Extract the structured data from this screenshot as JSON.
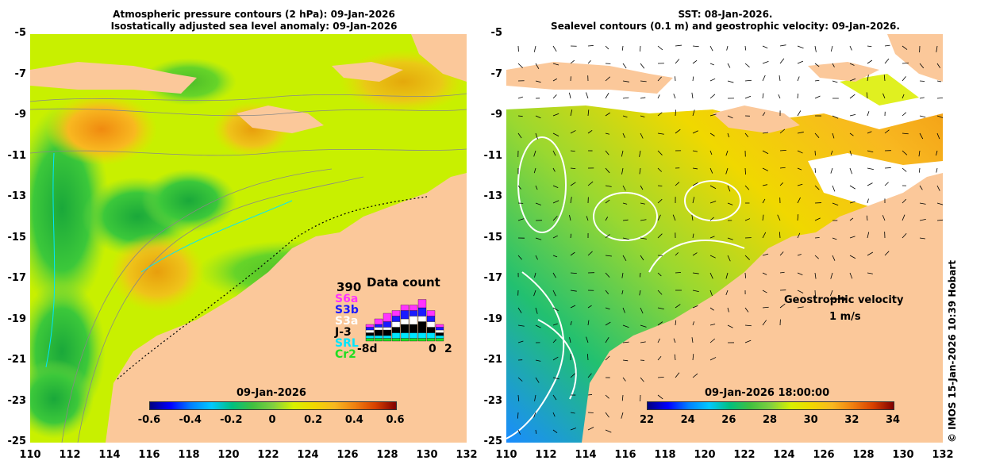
{
  "left_panel": {
    "title_line1": "Atmospheric pressure contours (2 hPa): 09-Jan-2026",
    "title_line2": "Isostatically adjusted sea level anomaly: 09-Jan-2026",
    "colorbar_date": "09-Jan-2026",
    "colorbar_ticks": [
      "-0.6",
      "-0.4",
      "-0.2",
      "0",
      "0.2",
      "0.4",
      "0.6"
    ],
    "colorbar_range": [
      -0.6,
      0.6
    ],
    "data_count": {
      "title": "Data count",
      "max_label": "390",
      "satellites": [
        {
          "name": "S6a",
          "color": "#ff33ff"
        },
        {
          "name": "S3b",
          "color": "#1a1aff"
        },
        {
          "name": "S3a",
          "color": "#ffffff"
        },
        {
          "name": "J-3",
          "color": "#000000"
        },
        {
          "name": "SRL",
          "color": "#00e5ff"
        },
        {
          "name": "Cr2",
          "color": "#22dd22"
        }
      ],
      "x_left": "-8d",
      "x_mid": "0",
      "x_right": "2"
    }
  },
  "right_panel": {
    "title_line1": "SST: 08-Jan-2026.",
    "title_line2": "Sealevel contours (0.1 m) and geostrophic velocity: 09-Jan-2026.",
    "colorbar_date": "09-Jan-2026 18:00:00",
    "colorbar_ticks": [
      "22",
      "24",
      "26",
      "28",
      "30",
      "32",
      "34"
    ],
    "colorbar_range": [
      22,
      34
    ],
    "velocity_label": "Geostrophic velocity",
    "velocity_scale": "1 m/s"
  },
  "axes": {
    "lat_ticks": [
      "-5",
      "-7",
      "-9",
      "-11",
      "-13",
      "-15",
      "-17",
      "-19",
      "-21",
      "-23",
      "-25"
    ],
    "lon_ticks": [
      "110",
      "112",
      "114",
      "116",
      "118",
      "120",
      "122",
      "124",
      "126",
      "128",
      "130",
      "132"
    ],
    "lat_range": [
      -25,
      -5
    ],
    "lon_range": [
      110,
      132
    ]
  },
  "copyright": "© IMOS 15-Jan-2026 10:39 Hobart",
  "colors": {
    "land": "#fbc89a",
    "ocean_mid": "#c8f000"
  }
}
